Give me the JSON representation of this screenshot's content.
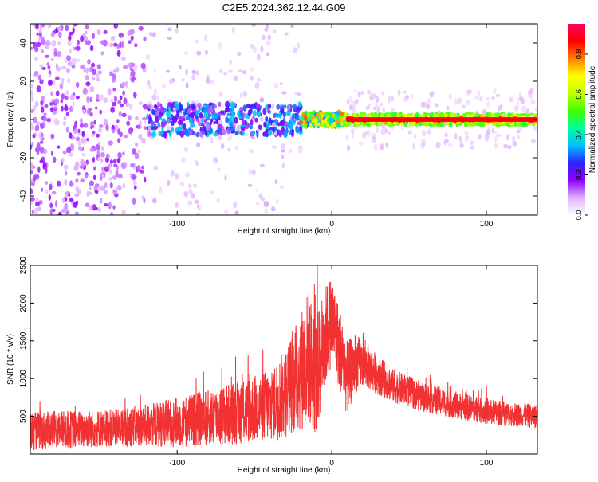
{
  "title": "C2E5.2024.362.12.44.G09",
  "colors": {
    "snr_line": "#f23232",
    "axis": "#000000"
  },
  "chart_data": [
    {
      "type": "heatmap",
      "xlabel": "Height of straight line (km)",
      "ylabel": "Frequency (Hz)",
      "xlim": [
        -195,
        133
      ],
      "ylim": [
        -50,
        50
      ],
      "xticks": [
        -100,
        0,
        100
      ],
      "yticks": [
        -40,
        -20,
        0,
        20,
        40
      ],
      "grid": false,
      "colorbar": {
        "label": "Normalized spectral amplitude",
        "range": [
          0,
          0.95
        ],
        "ticks": [
          0.0,
          0.2,
          0.4,
          0.6,
          0.8
        ],
        "colormap": [
          "#ffffff",
          "#e0b0ff",
          "#9000ff",
          "#3020ff",
          "#00c0ff",
          "#00ffa0",
          "#40ff00",
          "#c0ff00",
          "#ffff00",
          "#ff8000",
          "#ff0000",
          "#ff0060"
        ]
      },
      "regions": [
        {
          "x_range": [
            -195,
            -120
          ],
          "f_range": [
            -50,
            50
          ],
          "level": 0.1
        },
        {
          "x_range": [
            -120,
            -20
          ],
          "f_range": [
            -8,
            8
          ],
          "level": 0.25
        },
        {
          "x_range": [
            -20,
            10
          ],
          "f_range": [
            -3,
            3
          ],
          "level": 0.55
        },
        {
          "x_range": [
            10,
            133
          ],
          "f_range": [
            -2,
            2
          ],
          "level": 0.85
        }
      ]
    },
    {
      "type": "line",
      "xlabel": "Height of straight line (km)",
      "ylabel": "SNR (10 * v/v)",
      "xlim": [
        -195,
        133
      ],
      "ylim": [
        0,
        2500
      ],
      "xticks": [
        -100,
        0,
        100
      ],
      "yticks": [
        500,
        1000,
        1500,
        2000,
        2500
      ],
      "grid": false,
      "series": [
        {
          "x": [
            -195,
            -180,
            -160,
            -140,
            -120,
            -100,
            -80,
            -60,
            -40,
            -30,
            -20,
            -15,
            -10,
            -5,
            0,
            5,
            10,
            15,
            20,
            30,
            40,
            60,
            80,
            100,
            120,
            133
          ],
          "y": [
            300,
            320,
            330,
            350,
            380,
            420,
            480,
            550,
            650,
            800,
            1100,
            1300,
            1000,
            1500,
            1800,
            1400,
            1000,
            1200,
            1200,
            1050,
            900,
            750,
            650,
            560,
            520,
            500
          ],
          "spread": [
            250,
            250,
            250,
            250,
            280,
            330,
            380,
            420,
            480,
            600,
            800,
            900,
            800,
            700,
            600,
            550,
            500,
            400,
            320,
            260,
            220,
            200,
            180,
            170,
            160,
            160
          ]
        }
      ]
    }
  ]
}
